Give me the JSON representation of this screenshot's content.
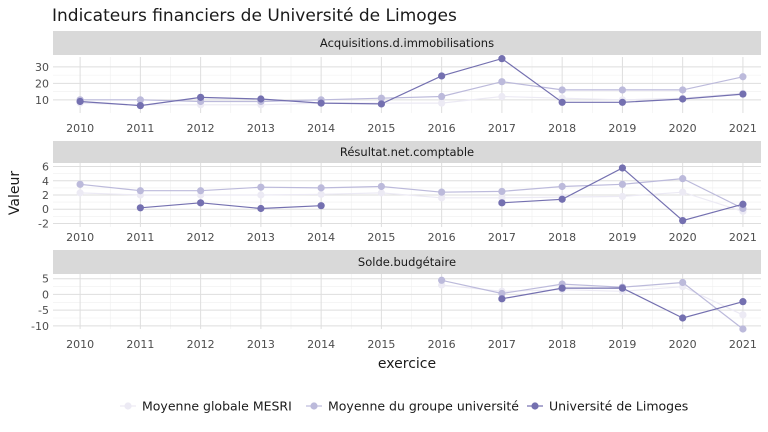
{
  "chart_data": {
    "type": "line",
    "title": "Indicateurs financiers de Université de Limoges",
    "xlabel": "exercice",
    "ylabel": "Valeur",
    "x": [
      2010,
      2011,
      2012,
      2013,
      2014,
      2015,
      2016,
      2017,
      2018,
      2019,
      2020,
      2021
    ],
    "series_names": [
      "Moyenne globale MESRI",
      "Moyenne du groupe université",
      "Université de Limoges"
    ],
    "series_colors": [
      "#eceaf4",
      "#bcbadb",
      "#7470b0"
    ],
    "legend_position": "bottom",
    "grid": true,
    "panels": [
      {
        "title": "Acquisitions.d.immobilisations",
        "ylim": [
          2,
          36
        ],
        "yticks": [
          10,
          20,
          30
        ],
        "series": [
          {
            "name": "Moyenne globale MESRI",
            "values": [
              8,
              7,
              7,
              7,
              8,
              8,
              8,
              12,
              11,
              10,
              11,
              14
            ]
          },
          {
            "name": "Moyenne du groupe université",
            "values": [
              10,
              10,
              9,
              9,
              10,
              11,
              12,
              21,
              16,
              16,
              16,
              24
            ]
          },
          {
            "name": "Université de Limoges",
            "values": [
              9,
              6.5,
              11.5,
              10.5,
              8,
              7.5,
              24.5,
              35,
              8.5,
              8.5,
              10.5,
              13.5
            ]
          }
        ]
      },
      {
        "title": "Résultat.net.comptable",
        "ylim": [
          -2.5,
          6.5
        ],
        "yticks": [
          -2,
          0,
          2,
          4,
          6
        ],
        "series": [
          {
            "name": "Moyenne globale MESRI",
            "values": [
              2.3,
              2.0,
              2.0,
              2.0,
              2.1,
              2.3,
              1.6,
              1.6,
              1.7,
              1.8,
              2.4,
              -0.3
            ]
          },
          {
            "name": "Moyenne du groupe université",
            "values": [
              3.5,
              2.6,
              2.6,
              3.1,
              3.0,
              3.2,
              2.4,
              2.5,
              3.2,
              3.5,
              4.3,
              0.1
            ]
          },
          {
            "name": "Université de Limoges",
            "values": [
              null,
              0.2,
              0.9,
              0.1,
              0.5,
              null,
              null,
              0.9,
              1.4,
              5.8,
              -1.6,
              0.7
            ]
          }
        ]
      },
      {
        "title": "Solde.budgétaire",
        "ylim": [
          -11,
          6.5
        ],
        "yticks": [
          -10,
          -5,
          0,
          5
        ],
        "series": [
          {
            "name": "Moyenne globale MESRI",
            "values": [
              null,
              null,
              null,
              null,
              null,
              null,
              3.0,
              1.0,
              1.5,
              1.0,
              2.5,
              -6.5
            ]
          },
          {
            "name": "Moyenne du groupe université",
            "values": [
              null,
              null,
              null,
              null,
              null,
              null,
              4.5,
              0.3,
              3.3,
              2.3,
              3.8,
              -11.0
            ]
          },
          {
            "name": "Université de Limoges",
            "values": [
              null,
              null,
              null,
              null,
              null,
              null,
              null,
              -1.4,
              2.0,
              2.0,
              -7.5,
              -2.3
            ]
          }
        ]
      }
    ]
  }
}
